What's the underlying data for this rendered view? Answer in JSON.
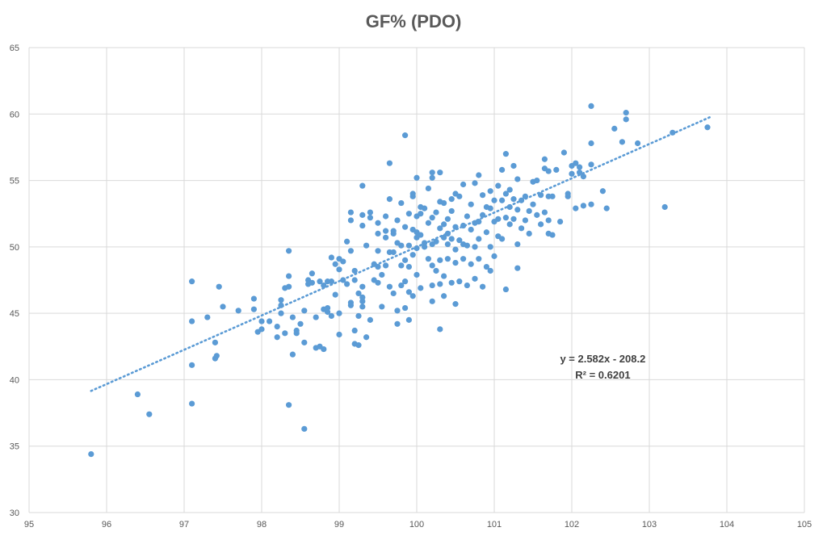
{
  "chart_data": {
    "type": "scatter",
    "title": "GF% (PDO)",
    "xlabel": "",
    "ylabel": "",
    "xlim": [
      95,
      105
    ],
    "ylim": [
      30,
      65
    ],
    "xticks": [
      95,
      96,
      97,
      98,
      99,
      100,
      101,
      102,
      103,
      104,
      105
    ],
    "yticks": [
      30,
      35,
      40,
      45,
      50,
      55,
      60,
      65
    ],
    "grid": "vertical-and-horizontal",
    "legend": "none",
    "point_color": "#5B9BD5",
    "trendline": {
      "type": "linear",
      "slope": 2.582,
      "intercept": -208.2,
      "x_range": [
        95.8,
        103.8
      ],
      "style": "dotted",
      "color": "#5B9BD5",
      "equation_label": "y = 2.582x - 208.2",
      "r2_label": "R² = 0.6201"
    },
    "points": [
      [
        95.8,
        34.4
      ],
      [
        96.4,
        38.9
      ],
      [
        96.55,
        37.4
      ],
      [
        97.1,
        38.2
      ],
      [
        97.1,
        41.1
      ],
      [
        97.1,
        44.4
      ],
      [
        97.1,
        47.4
      ],
      [
        97.3,
        44.7
      ],
      [
        97.4,
        41.6
      ],
      [
        97.42,
        41.8
      ],
      [
        97.4,
        42.8
      ],
      [
        97.45,
        47.0
      ],
      [
        97.5,
        45.5
      ],
      [
        97.7,
        45.2
      ],
      [
        97.9,
        45.3
      ],
      [
        97.9,
        46.1
      ],
      [
        97.95,
        43.6
      ],
      [
        98.0,
        43.8
      ],
      [
        98.0,
        44.4
      ],
      [
        98.1,
        44.4
      ],
      [
        98.2,
        44.0
      ],
      [
        98.2,
        43.2
      ],
      [
        98.25,
        45.0
      ],
      [
        98.25,
        45.6
      ],
      [
        98.25,
        46.0
      ],
      [
        98.3,
        43.5
      ],
      [
        98.3,
        46.9
      ],
      [
        98.35,
        47.0
      ],
      [
        98.35,
        47.8
      ],
      [
        98.35,
        49.7
      ],
      [
        98.35,
        38.1
      ],
      [
        98.4,
        44.7
      ],
      [
        98.4,
        41.9
      ],
      [
        98.45,
        43.5
      ],
      [
        98.45,
        43.7
      ],
      [
        98.5,
        44.2
      ],
      [
        98.55,
        45.2
      ],
      [
        98.55,
        42.8
      ],
      [
        98.55,
        36.3
      ],
      [
        98.6,
        47.2
      ],
      [
        98.6,
        47.5
      ],
      [
        98.65,
        48.0
      ],
      [
        98.65,
        47.3
      ],
      [
        98.7,
        42.4
      ],
      [
        98.7,
        44.7
      ],
      [
        98.75,
        42.5
      ],
      [
        98.75,
        47.4
      ],
      [
        98.8,
        45.3
      ],
      [
        98.8,
        47.1
      ],
      [
        98.8,
        42.3
      ],
      [
        98.85,
        45.1
      ],
      [
        98.85,
        45.4
      ],
      [
        98.85,
        47.4
      ],
      [
        98.9,
        47.4
      ],
      [
        98.9,
        49.2
      ],
      [
        98.9,
        44.8
      ],
      [
        98.95,
        46.4
      ],
      [
        98.95,
        48.7
      ],
      [
        99.0,
        43.4
      ],
      [
        99.0,
        45.0
      ],
      [
        99.0,
        48.3
      ],
      [
        99.0,
        49.1
      ],
      [
        99.05,
        47.5
      ],
      [
        99.05,
        48.9
      ],
      [
        99.1,
        50.4
      ],
      [
        99.1,
        47.2
      ],
      [
        99.15,
        45.6
      ],
      [
        99.15,
        45.8
      ],
      [
        99.15,
        49.7
      ],
      [
        99.15,
        52.0
      ],
      [
        99.15,
        52.6
      ],
      [
        99.2,
        47.5
      ],
      [
        99.2,
        48.2
      ],
      [
        99.2,
        43.7
      ],
      [
        99.2,
        42.7
      ],
      [
        99.25,
        46.5
      ],
      [
        99.25,
        42.6
      ],
      [
        99.25,
        44.8
      ],
      [
        99.3,
        45.5
      ],
      [
        99.3,
        45.9
      ],
      [
        99.3,
        46.2
      ],
      [
        99.3,
        47.0
      ],
      [
        99.3,
        51.6
      ],
      [
        99.3,
        54.6
      ],
      [
        99.3,
        52.4
      ],
      [
        99.35,
        43.2
      ],
      [
        99.35,
        50.1
      ],
      [
        99.4,
        44.5
      ],
      [
        99.4,
        52.2
      ],
      [
        99.4,
        52.6
      ],
      [
        99.45,
        47.5
      ],
      [
        99.45,
        48.7
      ],
      [
        99.5,
        47.3
      ],
      [
        99.5,
        48.5
      ],
      [
        99.5,
        49.7
      ],
      [
        99.5,
        51.0
      ],
      [
        99.5,
        51.8
      ],
      [
        99.55,
        45.5
      ],
      [
        99.55,
        47.9
      ],
      [
        99.6,
        48.6
      ],
      [
        99.6,
        50.7
      ],
      [
        99.6,
        51.2
      ],
      [
        99.6,
        52.3
      ],
      [
        99.65,
        47.0
      ],
      [
        99.65,
        49.6
      ],
      [
        99.65,
        53.6
      ],
      [
        99.65,
        56.3
      ],
      [
        99.7,
        46.5
      ],
      [
        99.7,
        49.6
      ],
      [
        99.7,
        51.0
      ],
      [
        99.7,
        51.2
      ],
      [
        99.75,
        44.2
      ],
      [
        99.75,
        45.2
      ],
      [
        99.75,
        50.3
      ],
      [
        99.75,
        52.0
      ],
      [
        99.8,
        47.1
      ],
      [
        99.8,
        48.6
      ],
      [
        99.8,
        50.1
      ],
      [
        99.8,
        53.3
      ],
      [
        99.85,
        45.4
      ],
      [
        99.85,
        47.4
      ],
      [
        99.85,
        49.0
      ],
      [
        99.85,
        51.5
      ],
      [
        99.85,
        58.4
      ],
      [
        99.9,
        44.5
      ],
      [
        99.9,
        46.6
      ],
      [
        99.9,
        48.5
      ],
      [
        99.9,
        50.1
      ],
      [
        99.9,
        52.5
      ],
      [
        99.95,
        46.3
      ],
      [
        99.95,
        49.4
      ],
      [
        99.95,
        51.3
      ],
      [
        99.95,
        53.8
      ],
      [
        99.95,
        54.0
      ],
      [
        100.0,
        47.9
      ],
      [
        100.0,
        49.9
      ],
      [
        100.0,
        50.7
      ],
      [
        100.0,
        51.1
      ],
      [
        100.0,
        52.3
      ],
      [
        100.0,
        55.2
      ],
      [
        100.05,
        46.9
      ],
      [
        100.05,
        50.9
      ],
      [
        100.05,
        52.5
      ],
      [
        100.05,
        53.0
      ],
      [
        100.1,
        50.0
      ],
      [
        100.1,
        50.3
      ],
      [
        100.1,
        52.9
      ],
      [
        100.15,
        49.1
      ],
      [
        100.15,
        51.8
      ],
      [
        100.15,
        54.4
      ],
      [
        100.2,
        45.9
      ],
      [
        100.2,
        47.1
      ],
      [
        100.2,
        48.6
      ],
      [
        100.2,
        50.2
      ],
      [
        100.2,
        52.2
      ],
      [
        100.2,
        55.2
      ],
      [
        100.2,
        55.6
      ],
      [
        100.25,
        48.2
      ],
      [
        100.25,
        50.4
      ],
      [
        100.25,
        52.6
      ],
      [
        100.3,
        43.8
      ],
      [
        100.3,
        47.2
      ],
      [
        100.3,
        49.0
      ],
      [
        100.3,
        51.4
      ],
      [
        100.3,
        53.4
      ],
      [
        100.3,
        55.6
      ],
      [
        100.35,
        46.3
      ],
      [
        100.35,
        47.8
      ],
      [
        100.35,
        50.7
      ],
      [
        100.35,
        51.7
      ],
      [
        100.35,
        53.3
      ],
      [
        100.4,
        49.1
      ],
      [
        100.4,
        50.2
      ],
      [
        100.4,
        51.0
      ],
      [
        100.4,
        52.1
      ],
      [
        100.45,
        47.3
      ],
      [
        100.45,
        50.6
      ],
      [
        100.45,
        52.7
      ],
      [
        100.45,
        53.6
      ],
      [
        100.5,
        45.7
      ],
      [
        100.5,
        48.8
      ],
      [
        100.5,
        49.8
      ],
      [
        100.5,
        51.5
      ],
      [
        100.5,
        54.0
      ],
      [
        100.55,
        47.4
      ],
      [
        100.55,
        50.5
      ],
      [
        100.55,
        53.8
      ],
      [
        100.6,
        49.1
      ],
      [
        100.6,
        50.2
      ],
      [
        100.6,
        51.6
      ],
      [
        100.6,
        54.7
      ],
      [
        100.65,
        47.1
      ],
      [
        100.65,
        50.1
      ],
      [
        100.65,
        52.3
      ],
      [
        100.7,
        48.7
      ],
      [
        100.7,
        51.3
      ],
      [
        100.7,
        53.2
      ],
      [
        100.75,
        47.6
      ],
      [
        100.75,
        50.0
      ],
      [
        100.75,
        51.8
      ],
      [
        100.75,
        54.8
      ],
      [
        100.8,
        49.1
      ],
      [
        100.8,
        50.6
      ],
      [
        100.8,
        51.9
      ],
      [
        100.8,
        55.4
      ],
      [
        100.85,
        47.0
      ],
      [
        100.85,
        52.4
      ],
      [
        100.85,
        53.9
      ],
      [
        100.9,
        48.5
      ],
      [
        100.9,
        51.1
      ],
      [
        100.9,
        53.0
      ],
      [
        100.95,
        48.2
      ],
      [
        100.95,
        50.0
      ],
      [
        100.95,
        52.9
      ],
      [
        100.95,
        54.2
      ],
      [
        101.0,
        49.3
      ],
      [
        101.0,
        51.9
      ],
      [
        101.0,
        53.5
      ],
      [
        101.05,
        50.8
      ],
      [
        101.05,
        52.1
      ],
      [
        101.05,
        54.6
      ],
      [
        101.1,
        50.6
      ],
      [
        101.1,
        53.5
      ],
      [
        101.1,
        55.8
      ],
      [
        101.15,
        46.8
      ],
      [
        101.15,
        52.2
      ],
      [
        101.15,
        54.0
      ],
      [
        101.15,
        57.0
      ],
      [
        101.2,
        51.7
      ],
      [
        101.2,
        53.0
      ],
      [
        101.2,
        54.3
      ],
      [
        101.25,
        52.1
      ],
      [
        101.25,
        53.6
      ],
      [
        101.25,
        56.1
      ],
      [
        101.3,
        48.4
      ],
      [
        101.3,
        50.2
      ],
      [
        101.3,
        52.8
      ],
      [
        101.3,
        55.1
      ],
      [
        101.35,
        51.4
      ],
      [
        101.35,
        53.5
      ],
      [
        101.4,
        52.0
      ],
      [
        101.4,
        53.8
      ],
      [
        101.45,
        51.0
      ],
      [
        101.45,
        52.7
      ],
      [
        101.5,
        53.2
      ],
      [
        101.5,
        54.9
      ],
      [
        101.55,
        52.4
      ],
      [
        101.55,
        55.0
      ],
      [
        101.6,
        51.7
      ],
      [
        101.6,
        53.9
      ],
      [
        101.65,
        52.6
      ],
      [
        101.65,
        55.9
      ],
      [
        101.65,
        56.6
      ],
      [
        101.7,
        51.0
      ],
      [
        101.7,
        52.0
      ],
      [
        101.7,
        53.8
      ],
      [
        101.7,
        55.7
      ],
      [
        101.75,
        50.9
      ],
      [
        101.75,
        53.8
      ],
      [
        101.8,
        55.8
      ],
      [
        101.85,
        51.9
      ],
      [
        101.9,
        57.1
      ],
      [
        101.95,
        53.8
      ],
      [
        101.95,
        54.0
      ],
      [
        102.0,
        55.5
      ],
      [
        102.0,
        56.1
      ],
      [
        102.05,
        52.9
      ],
      [
        102.05,
        56.3
      ],
      [
        102.1,
        56.0
      ],
      [
        102.1,
        55.6
      ],
      [
        102.15,
        53.1
      ],
      [
        102.15,
        55.3
      ],
      [
        102.25,
        53.2
      ],
      [
        102.25,
        56.2
      ],
      [
        102.25,
        57.8
      ],
      [
        102.25,
        60.6
      ],
      [
        102.4,
        54.2
      ],
      [
        102.45,
        52.9
      ],
      [
        102.55,
        58.9
      ],
      [
        102.65,
        57.9
      ],
      [
        102.7,
        59.6
      ],
      [
        102.7,
        60.1
      ],
      [
        102.85,
        57.8
      ],
      [
        103.2,
        53.0
      ],
      [
        103.3,
        58.6
      ],
      [
        103.75,
        59.0
      ]
    ]
  }
}
